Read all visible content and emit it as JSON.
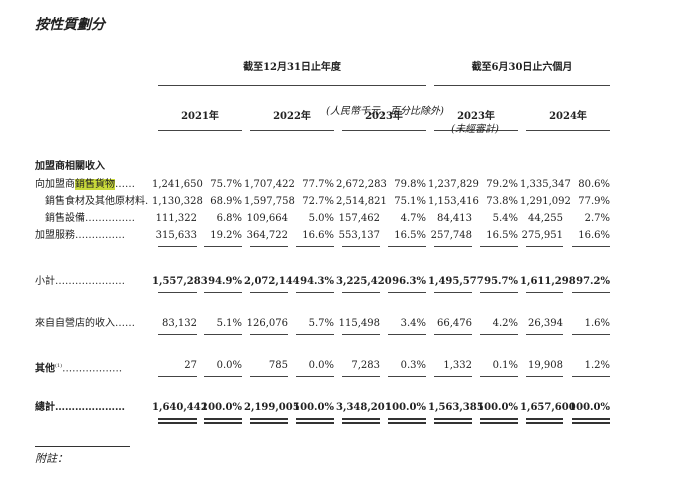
{
  "title": "按性質劃分",
  "header": {
    "group1": "截至12月31日止年度",
    "group2": "截至6月30日止六個月",
    "years": [
      "2021年",
      "2022年",
      "2023年",
      "2023年",
      "2024年"
    ],
    "units": "(人民幣千元，百分比除外)",
    "unaudited": "(未經審計)"
  },
  "highlight_color": "#c9d93a",
  "section_label": "加盟商相關收入",
  "rows": [
    {
      "label_pre": "向加盟商",
      "label_hl": "銷售貨物",
      "label_dots": "……",
      "cells": [
        "1,241,650",
        "75.7%",
        "1,707,422",
        "77.7%",
        "2,672,283",
        "79.8%",
        "1,237,829",
        "79.2%",
        "1,335,347",
        "80.6%"
      ]
    },
    {
      "label": "銷售食材及其他原材料.",
      "cells": [
        "1,130,328",
        "68.9%",
        "1,597,758",
        "72.7%",
        "2,514,821",
        "75.1%",
        "1,153,416",
        "73.8%",
        "1,291,092",
        "77.9%"
      ]
    },
    {
      "label": "銷售設備……………",
      "cells": [
        "111,322",
        "6.8%",
        "109,664",
        "5.0%",
        "157,462",
        "4.7%",
        "84,413",
        "5.4%",
        "44,255",
        "2.7%"
      ]
    },
    {
      "label": "加盟服務……………",
      "cells": [
        "315,633",
        "19.2%",
        "364,722",
        "16.6%",
        "553,137",
        "16.5%",
        "257,748",
        "16.5%",
        "275,951",
        "16.6%"
      ]
    }
  ],
  "subtotal": {
    "label": "小計…………………",
    "cells": [
      "1,557,283",
      "94.9%",
      "2,072,144",
      "94.3%",
      "3,225,420",
      "96.3%",
      "1,495,577",
      "95.7%",
      "1,611,298",
      "97.2%"
    ]
  },
  "self_operated": {
    "label": "來自自營店的收入……",
    "cells": [
      "83,132",
      "5.1%",
      "126,076",
      "5.7%",
      "115,498",
      "3.4%",
      "66,476",
      "4.2%",
      "26,394",
      "1.6%"
    ]
  },
  "others": {
    "label": "其他",
    "sup": "(1)",
    "dots": "………………",
    "cells": [
      "27",
      "0.0%",
      "785",
      "0.0%",
      "7,283",
      "0.3%",
      "1,332",
      "0.1%",
      "19,908",
      "1.2%"
    ]
  },
  "total": {
    "label": "總計…………………",
    "cells": [
      "1,640,442",
      "100.0%",
      "2,199,005",
      "100.0%",
      "3,348,201",
      "100.0%",
      "1,563,385",
      "100.0%",
      "1,657,600",
      "100.0%"
    ]
  },
  "note_label": "附註："
}
